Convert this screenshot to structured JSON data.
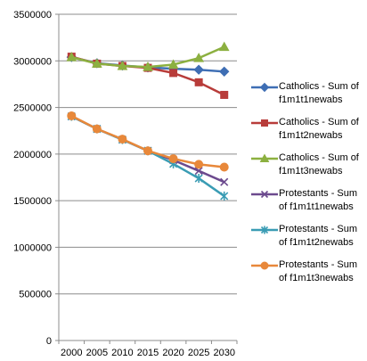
{
  "chart_data": {
    "type": "line",
    "title": "",
    "xlabel": "",
    "ylabel": "",
    "x": [
      "2000",
      "2005",
      "2010",
      "2015",
      "2020",
      "2025",
      "2030"
    ],
    "ylim": [
      0,
      3500000
    ],
    "yticks": [
      "0",
      "500000",
      "1000000",
      "1500000",
      "2000000",
      "2500000",
      "3000000",
      "3500000"
    ],
    "grid": "horizontal",
    "legend_position": "right",
    "series": [
      {
        "name": "Catholics - Sum of f1m1t1newabs",
        "color": "#3e6eb4",
        "marker": "diamond",
        "values": [
          3040000,
          2975000,
          2950000,
          2930000,
          2915000,
          2905000,
          2885000
        ]
      },
      {
        "name": "Catholics - Sum of f1m1t2newabs",
        "color": "#b83c3a",
        "marker": "square",
        "values": [
          3045000,
          2970000,
          2945000,
          2925000,
          2870000,
          2770000,
          2635000
        ]
      },
      {
        "name": "Catholics - Sum of f1m1t3newabs",
        "color": "#8cb040",
        "marker": "triangle",
        "values": [
          3040000,
          2970000,
          2945000,
          2935000,
          2960000,
          3030000,
          3150000
        ]
      },
      {
        "name": "Protestants - Sum of f1m1t1newabs",
        "color": "#6c4a8e",
        "marker": "x",
        "values": [
          2405000,
          2270000,
          2155000,
          2035000,
          1935000,
          1820000,
          1700000
        ]
      },
      {
        "name": "Protestants - Sum of f1m1t2newabs",
        "color": "#3a9cb4",
        "marker": "star",
        "values": [
          2405000,
          2270000,
          2155000,
          2035000,
          1895000,
          1740000,
          1550000
        ]
      },
      {
        "name": "Protestants - Sum of f1m1t3newabs",
        "color": "#e8883a",
        "marker": "circle",
        "values": [
          2410000,
          2270000,
          2160000,
          2035000,
          1950000,
          1890000,
          1860000
        ]
      }
    ]
  }
}
